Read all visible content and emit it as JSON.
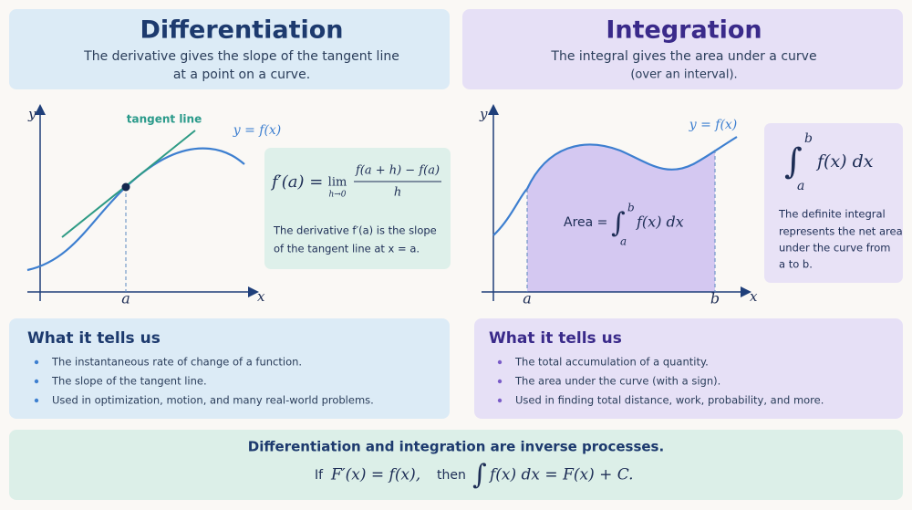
{
  "left": {
    "title": "Differentiation",
    "subtitle": [
      "The derivative gives the slope of the tangent line",
      "at a point on a curve."
    ],
    "graph": {
      "y_axis": "y",
      "x_axis": "x",
      "point": "a",
      "tangent_label": "tangent line",
      "curve_label": "y = f(x)"
    },
    "formula": {
      "lhs": "f′(a) =",
      "lim": "lim",
      "lim_sub": "h→0",
      "numerator": "f(a + h) − f(a)",
      "denominator": "h",
      "note": [
        "The derivative f′(a) is the slope",
        "of the tangent line at x = a."
      ]
    },
    "what": {
      "heading": "What it tells us",
      "items": [
        "The instantaneous rate of change of a function.",
        "The slope of the tangent line.",
        "Used in optimization, motion, and many real-world problems."
      ]
    }
  },
  "right": {
    "title": "Integration",
    "subtitle": [
      "The integral gives the area under a curve",
      "(over an interval)."
    ],
    "graph": {
      "y_axis": "y",
      "x_axis": "x",
      "lower": "a",
      "upper": "b",
      "curve_label": "y = f(x)",
      "area_label": "Area =",
      "integral": "∫",
      "upper_limit": "b",
      "lower_limit": "a",
      "integrand": "f(x) dx"
    },
    "formula": {
      "integral": "∫",
      "upper_limit": "b",
      "lower_limit": "a",
      "integrand": "f(x) dx",
      "note": [
        "The definite integral",
        "represents the net area",
        "under the curve from",
        "a to b."
      ]
    },
    "what": {
      "heading": "What it tells us",
      "items": [
        "The total accumulation of a quantity.",
        "The area under the curve (with a sign).",
        "Used in finding total distance, work, probability, and more."
      ]
    }
  },
  "footer": {
    "statement": "Differentiation and integration are inverse processes.",
    "if": "If",
    "premise": "F′(x) = f(x),",
    "then": "then",
    "integral": "∫",
    "conclusion": "f(x) dx = F(x) + C."
  }
}
